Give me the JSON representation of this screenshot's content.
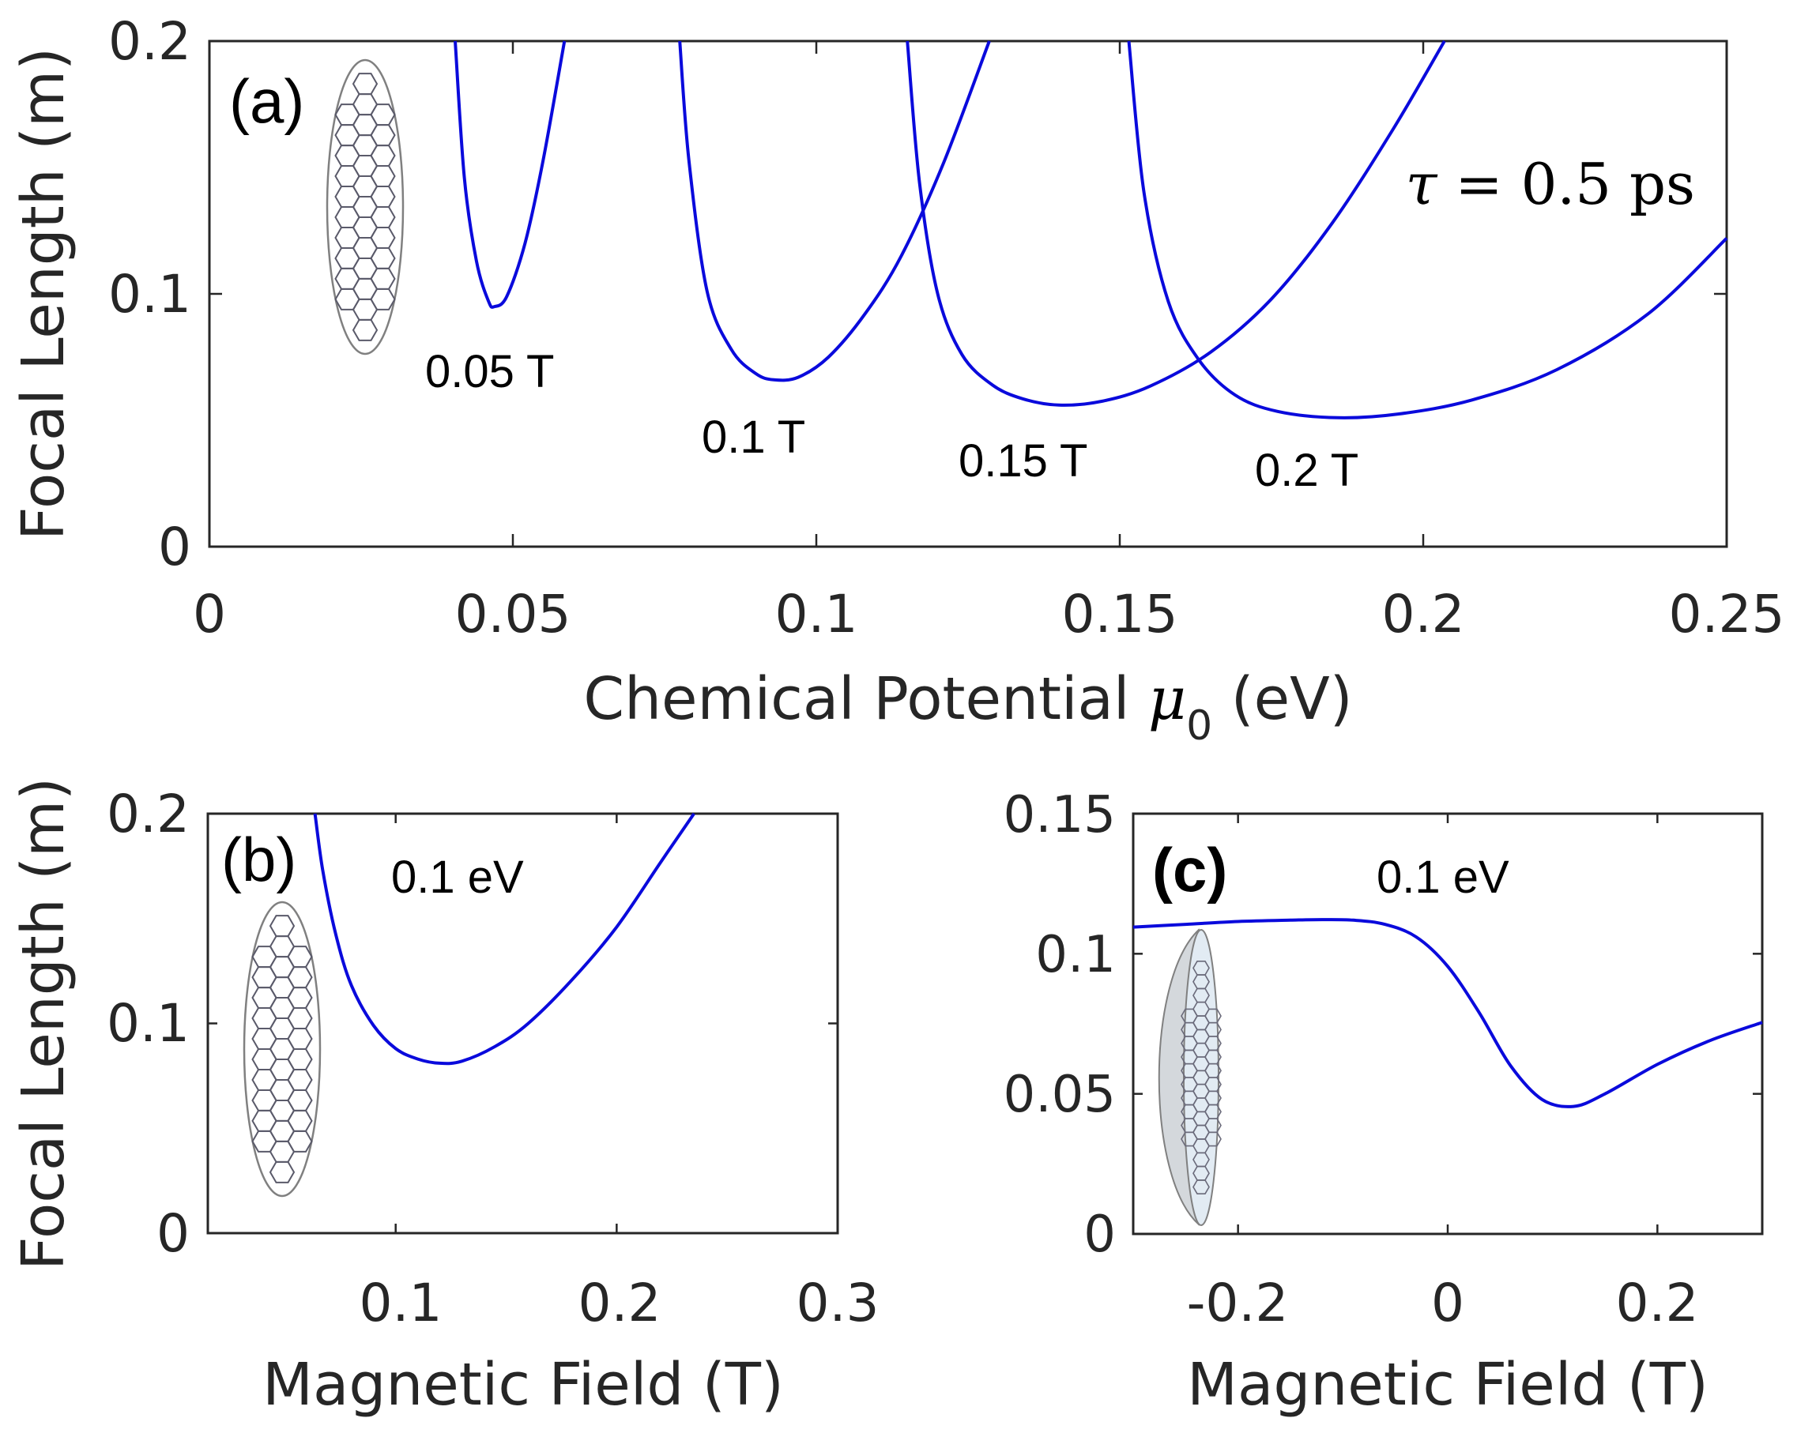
{
  "colors": {
    "line": "#0a0adc",
    "axis": "#262626",
    "lens": "#808080",
    "lens_fill": "#e2ebf3"
  },
  "chart_data": [
    {
      "panel": "(a)",
      "type": "line",
      "xlabel": "Chemical Potential",
      "xlabel_symbol": "μ",
      "xlabel_sub": "0",
      "xlabel_unit": "(eV)",
      "ylabel": "Focal Length (m)",
      "xlim": [
        0,
        0.25
      ],
      "ylim": [
        0,
        0.2
      ],
      "xticks": [
        0,
        0.05,
        0.1,
        0.15,
        0.2,
        0.25
      ],
      "xtick_labels": [
        "0",
        "0.05",
        "0.1",
        "0.15",
        "0.2",
        "0.25"
      ],
      "yticks": [
        0,
        0.1,
        0.2
      ],
      "ytick_labels": [
        "0",
        "0.1",
        "0.2"
      ],
      "annotation": {
        "symbol": "τ",
        "text": " = 0.5 ps"
      },
      "series": [
        {
          "name": "0.05 T",
          "x": [
            0.0405,
            0.042,
            0.044,
            0.046,
            0.047,
            0.049,
            0.052,
            0.055,
            0.0585
          ],
          "y": [
            0.2,
            0.146,
            0.113,
            0.097,
            0.095,
            0.099,
            0.12,
            0.153,
            0.2
          ]
        },
        {
          "name": "0.1 T",
          "x": [
            0.0775,
            0.079,
            0.082,
            0.086,
            0.09,
            0.093,
            0.097,
            0.102,
            0.108,
            0.114,
            0.121,
            0.1285
          ],
          "y": [
            0.2,
            0.153,
            0.101,
            0.078,
            0.0685,
            0.066,
            0.067,
            0.075,
            0.092,
            0.115,
            0.152,
            0.2
          ]
        },
        {
          "name": "0.15 T",
          "x": [
            0.115,
            0.117,
            0.12,
            0.124,
            0.129,
            0.134,
            0.14,
            0.147,
            0.155,
            0.165,
            0.175,
            0.185,
            0.195,
            0.2035
          ],
          "y": [
            0.2,
            0.144,
            0.1,
            0.076,
            0.064,
            0.0585,
            0.056,
            0.0575,
            0.0635,
            0.077,
            0.098,
            0.128,
            0.165,
            0.2
          ]
        },
        {
          "name": "0.2 T",
          "x": [
            0.1515,
            0.154,
            0.158,
            0.163,
            0.169,
            0.176,
            0.186,
            0.196,
            0.208,
            0.222,
            0.237,
            0.25
          ],
          "y": [
            0.2,
            0.14,
            0.097,
            0.074,
            0.06,
            0.0535,
            0.051,
            0.0525,
            0.058,
            0.07,
            0.092,
            0.122
          ]
        }
      ]
    },
    {
      "panel": "(b)",
      "type": "line",
      "xlabel": "Magnetic Field (T)",
      "ylabel": "Focal Length (m)",
      "xlim": [
        0.015,
        0.3
      ],
      "ylim": [
        0,
        0.2
      ],
      "xticks": [
        0.1,
        0.2,
        0.3
      ],
      "xtick_labels": [
        "0.1",
        "0.2",
        "0.3"
      ],
      "yticks": [
        0,
        0.1,
        0.2
      ],
      "ytick_labels": [
        "0",
        "0.1",
        "0.2"
      ],
      "series": [
        {
          "name": "0.1 eV",
          "x": [
            0.0635,
            0.067,
            0.073,
            0.08,
            0.09,
            0.1,
            0.11,
            0.12,
            0.13,
            0.145,
            0.16,
            0.18,
            0.2,
            0.22,
            0.235
          ],
          "y": [
            0.2,
            0.173,
            0.142,
            0.118,
            0.099,
            0.088,
            0.083,
            0.081,
            0.082,
            0.089,
            0.1,
            0.121,
            0.146,
            0.177,
            0.2
          ]
        }
      ]
    },
    {
      "panel": "(c)",
      "type": "line",
      "xlabel": "Magnetic Field (T)",
      "ylabel": "",
      "xlim": [
        -0.3,
        0.3
      ],
      "ylim": [
        0,
        0.15
      ],
      "xticks": [
        -0.2,
        0,
        0.2
      ],
      "xtick_labels": [
        "-0.2",
        "0",
        "0.2"
      ],
      "yticks": [
        0,
        0.05,
        0.1,
        0.15
      ],
      "ytick_labels": [
        "0",
        "0.05",
        "0.1",
        "0.15"
      ],
      "series": [
        {
          "name": "0.1 eV",
          "x": [
            -0.3,
            -0.25,
            -0.2,
            -0.15,
            -0.12,
            -0.09,
            -0.06,
            -0.03,
            0,
            0.03,
            0.06,
            0.09,
            0.12,
            0.15,
            0.2,
            0.25,
            0.3
          ],
          "y": [
            0.1095,
            0.1105,
            0.1115,
            0.112,
            0.1122,
            0.112,
            0.1105,
            0.106,
            0.0955,
            0.079,
            0.06,
            0.048,
            0.0455,
            0.05,
            0.0605,
            0.069,
            0.0755
          ]
        }
      ]
    }
  ]
}
